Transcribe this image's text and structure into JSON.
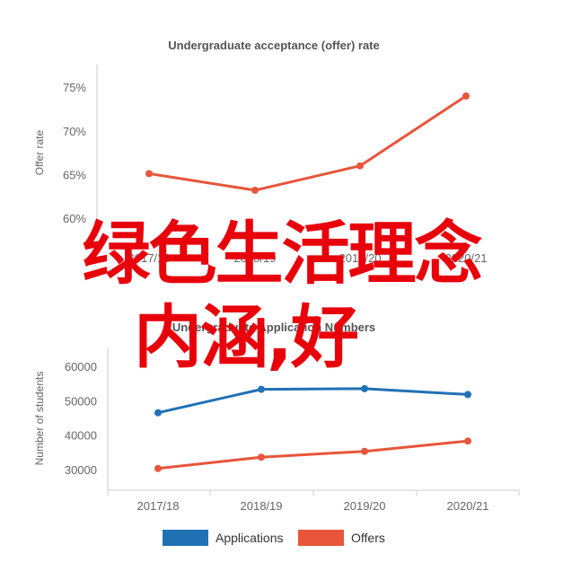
{
  "chart_data": [
    {
      "type": "line",
      "title": "Undergraduate acceptance (offer) rate",
      "ylabel": "Offer rate",
      "xlabel": "",
      "categories": [
        "2017/18",
        "2018/19",
        "2019/20",
        "2020/21"
      ],
      "y_ticks": [
        "60%",
        "65%",
        "70%",
        "75%"
      ],
      "ylim": [
        60,
        77
      ],
      "grid": false,
      "series": [
        {
          "values": [
            65.1,
            63.2,
            66.0,
            74.0
          ],
          "color": "#e8553a"
        }
      ]
    },
    {
      "type": "line",
      "title": "Undergraduate Application Numbers",
      "ylabel": "Number of students",
      "xlabel": "",
      "categories": [
        "2017/18",
        "2018/19",
        "2019/20",
        "2020/21"
      ],
      "y_ticks": [
        "30000",
        "40000",
        "50000",
        "60000"
      ],
      "ylim": [
        25000,
        65000
      ],
      "grid": false,
      "legend": "bottom",
      "series": [
        {
          "name": "Applications",
          "values": [
            46500,
            53300,
            53500,
            51800
          ],
          "color": "#2171b5"
        },
        {
          "name": "Offers",
          "values": [
            30300,
            33600,
            35300,
            38300
          ],
          "color": "#e8553a"
        }
      ]
    }
  ],
  "overlay": {
    "line1": "绿色生活理念",
    "line2": "内涵,好"
  }
}
